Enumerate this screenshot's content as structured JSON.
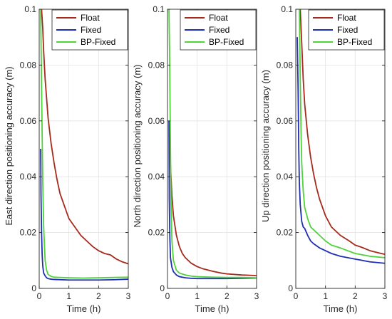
{
  "chart_data": [
    {
      "type": "line",
      "xlabel": "Time (h)",
      "ylabel": "East direction positioning accuracy (m)",
      "xlim": [
        0,
        3
      ],
      "ylim": [
        0,
        0.1
      ],
      "xticks": [
        "0",
        "1",
        "2",
        "3"
      ],
      "yticks": [
        "0",
        "0.02",
        "0.04",
        "0.06",
        "0.08",
        "0.1"
      ],
      "grid": true,
      "legend_position": "top-right",
      "series": [
        {
          "name": "Float",
          "color": "#a52a1c",
          "x": [
            0.08,
            0.12,
            0.15,
            0.2,
            0.25,
            0.3,
            0.4,
            0.5,
            0.6,
            0.7,
            0.8,
            0.9,
            1.0,
            1.2,
            1.4,
            1.6,
            1.8,
            2.0,
            2.2,
            2.4,
            2.6,
            2.8,
            3.0
          ],
          "y": [
            0.1,
            0.093,
            0.085,
            0.075,
            0.068,
            0.061,
            0.052,
            0.045,
            0.039,
            0.034,
            0.031,
            0.028,
            0.025,
            0.022,
            0.019,
            0.017,
            0.015,
            0.0135,
            0.0125,
            0.012,
            0.0105,
            0.0095,
            0.0088
          ]
        },
        {
          "name": "Fixed",
          "color": "#1f2db4",
          "x": [
            0.05,
            0.06,
            0.08,
            0.1,
            0.12,
            0.15,
            0.2,
            0.25,
            0.3,
            0.4,
            0.5,
            1.0,
            1.5,
            2.0,
            2.5,
            3.0
          ],
          "y": [
            0.05,
            0.034,
            0.02,
            0.012,
            0.008,
            0.0055,
            0.0045,
            0.0038,
            0.0035,
            0.0033,
            0.0032,
            0.003,
            0.003,
            0.003,
            0.0031,
            0.0033
          ]
        },
        {
          "name": "BP-Fixed",
          "color": "#4fd23a",
          "x": [
            0.05,
            0.06,
            0.08,
            0.1,
            0.12,
            0.15,
            0.2,
            0.25,
            0.3,
            0.4,
            0.5,
            1.0,
            1.5,
            2.0,
            2.5,
            3.0
          ],
          "y": [
            0.1,
            0.09,
            0.072,
            0.055,
            0.038,
            0.022,
            0.01,
            0.0065,
            0.005,
            0.0043,
            0.004,
            0.0038,
            0.0037,
            0.0038,
            0.0039,
            0.004
          ]
        }
      ]
    },
    {
      "type": "line",
      "xlabel": "Time (h)",
      "ylabel": "North direction positioning accuracy (m)",
      "xlim": [
        0,
        3
      ],
      "ylim": [
        0,
        0.1
      ],
      "xticks": [
        "0",
        "1",
        "2",
        "3"
      ],
      "yticks": [
        "0",
        "0.02",
        "0.04",
        "0.06",
        "0.08",
        "0.1"
      ],
      "grid": true,
      "legend_position": "top-right",
      "series": [
        {
          "name": "Float",
          "color": "#a52a1c",
          "x": [
            0.08,
            0.1,
            0.15,
            0.2,
            0.3,
            0.4,
            0.5,
            0.6,
            0.8,
            1.0,
            1.2,
            1.5,
            1.8,
            2.0,
            2.5,
            3.0
          ],
          "y": [
            0.056,
            0.044,
            0.033,
            0.026,
            0.019,
            0.015,
            0.0125,
            0.011,
            0.009,
            0.0078,
            0.007,
            0.0062,
            0.0055,
            0.0052,
            0.0048,
            0.0046
          ]
        },
        {
          "name": "Fixed",
          "color": "#1f2db4",
          "x": [
            0.05,
            0.06,
            0.08,
            0.1,
            0.15,
            0.2,
            0.3,
            0.4,
            0.6,
            0.8,
            1.0,
            1.5,
            2.0,
            2.5,
            3.0
          ],
          "y": [
            0.06,
            0.032,
            0.018,
            0.011,
            0.0075,
            0.006,
            0.0048,
            0.0042,
            0.0038,
            0.0036,
            0.0035,
            0.0035,
            0.0035,
            0.0036,
            0.0037
          ]
        },
        {
          "name": "BP-Fixed",
          "color": "#4fd23a",
          "x": [
            0.03,
            0.05,
            0.07,
            0.1,
            0.12,
            0.15,
            0.2,
            0.3,
            0.4,
            0.6,
            0.8,
            1.0,
            1.5,
            2.0,
            2.5,
            3.0
          ],
          "y": [
            0.1,
            0.1,
            0.085,
            0.05,
            0.03,
            0.017,
            0.01,
            0.0065,
            0.0055,
            0.0048,
            0.0044,
            0.0042,
            0.004,
            0.0039,
            0.0039,
            0.0038
          ]
        }
      ]
    },
    {
      "type": "line",
      "xlabel": "Time (h)",
      "ylabel": "Up direction positioning accuracy (m)",
      "xlim": [
        0,
        3
      ],
      "ylim": [
        0,
        0.1
      ],
      "xticks": [
        "0",
        "1",
        "2",
        "3"
      ],
      "yticks": [
        "0",
        "0.02",
        "0.04",
        "0.06",
        "0.08",
        "0.1"
      ],
      "grid": true,
      "legend_position": "top-right",
      "series": [
        {
          "name": "Float",
          "color": "#a52a1c",
          "x": [
            0.15,
            0.2,
            0.25,
            0.3,
            0.4,
            0.5,
            0.6,
            0.7,
            0.8,
            1.0,
            1.2,
            1.5,
            1.8,
            2.0,
            2.2,
            2.5,
            2.8,
            3.0
          ],
          "y": [
            0.1,
            0.088,
            0.075,
            0.066,
            0.055,
            0.047,
            0.041,
            0.036,
            0.032,
            0.026,
            0.022,
            0.019,
            0.017,
            0.0155,
            0.0148,
            0.0135,
            0.0127,
            0.0122
          ]
        },
        {
          "name": "Fixed",
          "color": "#1f2db4",
          "x": [
            0.05,
            0.08,
            0.1,
            0.12,
            0.15,
            0.2,
            0.25,
            0.3,
            0.4,
            0.5,
            0.6,
            0.8,
            1.0,
            1.2,
            1.5,
            2.0,
            2.5,
            3.0
          ],
          "y": [
            0.09,
            0.07,
            0.05,
            0.038,
            0.03,
            0.024,
            0.022,
            0.0215,
            0.019,
            0.017,
            0.016,
            0.0145,
            0.0135,
            0.0125,
            0.0115,
            0.0105,
            0.0095,
            0.009
          ]
        },
        {
          "name": "BP-Fixed",
          "color": "#4fd23a",
          "x": [
            0.12,
            0.15,
            0.18,
            0.2,
            0.25,
            0.3,
            0.4,
            0.5,
            0.6,
            0.8,
            1.0,
            1.2,
            1.5,
            2.0,
            2.5,
            3.0
          ],
          "y": [
            0.1,
            0.075,
            0.055,
            0.045,
            0.035,
            0.029,
            0.025,
            0.022,
            0.021,
            0.019,
            0.017,
            0.0155,
            0.0145,
            0.0125,
            0.0115,
            0.011
          ]
        }
      ]
    }
  ]
}
